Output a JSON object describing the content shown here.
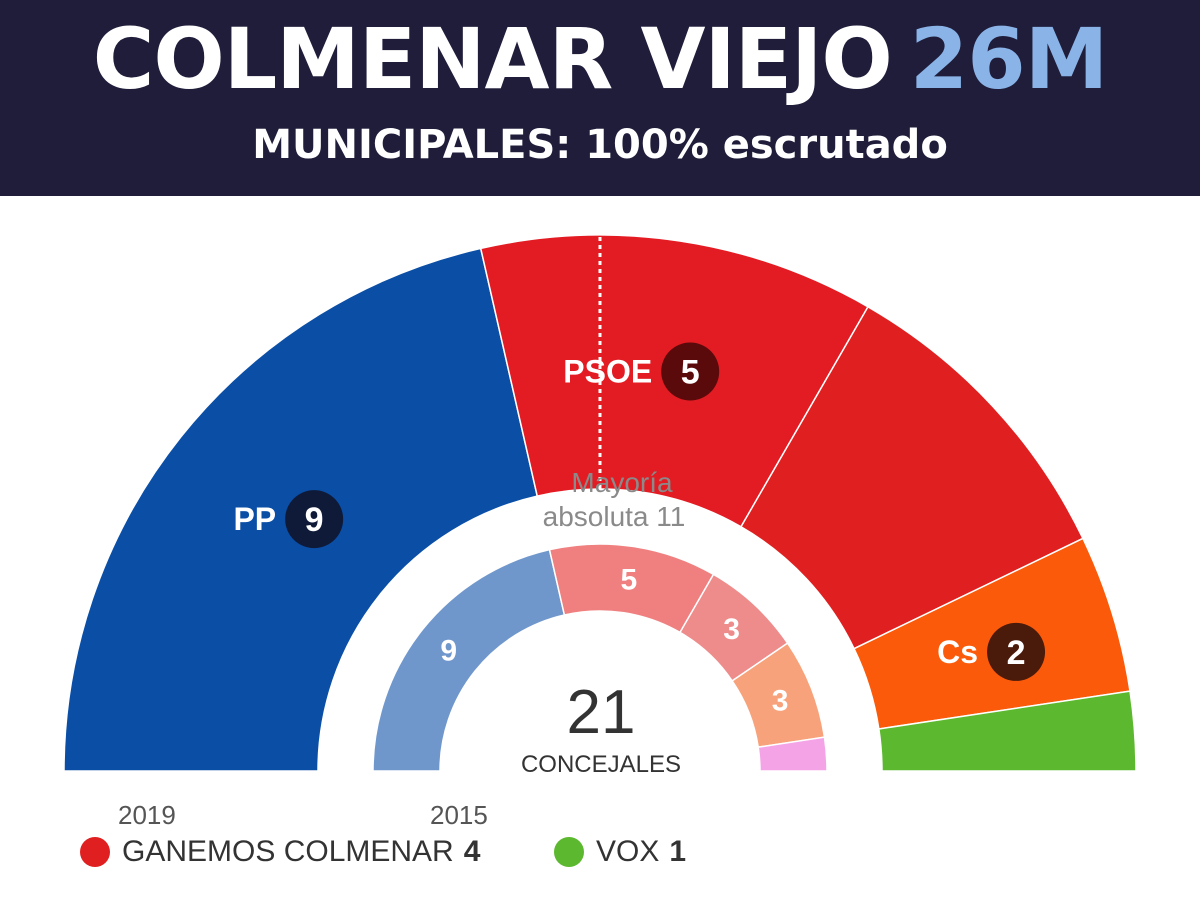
{
  "header": {
    "title": "COLMENAR VIEJO",
    "title_accent": "26M",
    "subtitle": "MUNICIPALES: 100% escrutado"
  },
  "chart_data": {
    "type": "pie",
    "variant": "parliament-semicircle",
    "total_seats": 21,
    "total_label": "CONCEJALES",
    "majority_seats": 11,
    "majority_label": "Mayoría absoluta 11",
    "elections": [
      {
        "year": "2019",
        "ring": "outer",
        "parties": [
          {
            "name": "PP",
            "seats": 9,
            "color": "#0a4ea6",
            "labeled": true,
            "badge_color": "#0e1a38"
          },
          {
            "name": "PSOE",
            "seats": 5,
            "color": "#e31b23",
            "labeled": true,
            "badge_color": "#5a0a0a"
          },
          {
            "name": "GANEMOS COLMENAR",
            "seats": 4,
            "color": "#e02020",
            "labeled": false
          },
          {
            "name": "Cs",
            "seats": 2,
            "color": "#fa5a0a",
            "labeled": true,
            "badge_color": "#4a1a0a"
          },
          {
            "name": "VOX",
            "seats": 1,
            "color": "#5cb82e",
            "labeled": false
          }
        ]
      },
      {
        "year": "2015",
        "ring": "inner",
        "parties": [
          {
            "seats": 9,
            "color": "#7097cc"
          },
          {
            "seats": 5,
            "color": "#f08080"
          },
          {
            "seats": 3,
            "color": "#ee8c8c"
          },
          {
            "seats": 3,
            "color": "#f7a27a"
          },
          {
            "seats": 1,
            "color": "#f4a4e6"
          }
        ]
      }
    ],
    "legend": [
      {
        "name": "GANEMOS COLMENAR",
        "seats": 4,
        "color": "#e02020"
      },
      {
        "name": "VOX",
        "seats": 1,
        "color": "#5cb82e"
      }
    ]
  }
}
